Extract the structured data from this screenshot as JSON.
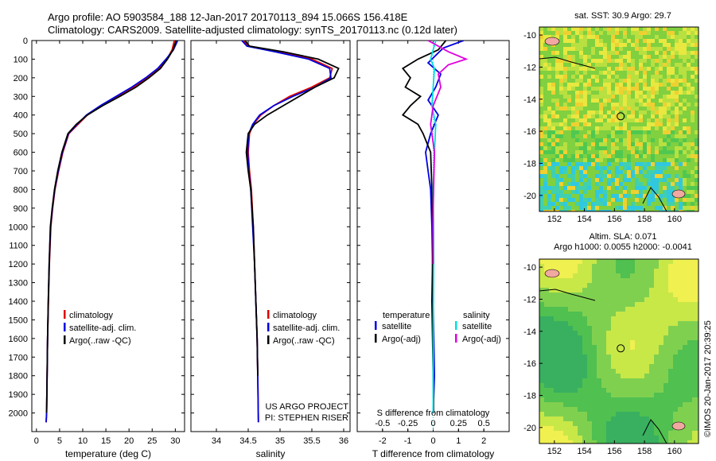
{
  "header": {
    "line1": "Argo profile: AO 5903584_188 12-Jan-2017 20170113_894 15.066S 156.418E",
    "line2": "Climatology: CARS2009. Satellite-adjusted climatology: synTS_20170113.nc (0.12d later)"
  },
  "credit": "©IMOS 20-Jan-2017 20:39:25",
  "chart_data": [
    {
      "id": "temperature",
      "type": "line",
      "xlabel": "temperature (deg C)",
      "xlim": [
        -1,
        32
      ],
      "ylim": [
        2100,
        0
      ],
      "xticks": [
        0,
        5,
        10,
        15,
        20,
        25,
        30
      ],
      "yticks": [
        0,
        100,
        200,
        300,
        400,
        500,
        600,
        700,
        800,
        900,
        1000,
        1100,
        1200,
        1300,
        1400,
        1500,
        1600,
        1700,
        1800,
        1900,
        2000
      ],
      "legend": [
        "climatology",
        "satellite-adj. clim.",
        "Argo(..raw -QC)"
      ],
      "legend_colors": [
        "#e00000",
        "#0000e0",
        "#000000"
      ],
      "series": [
        {
          "name": "climatology",
          "color": "#e00000",
          "x": [
            29.8,
            29.3,
            28.2,
            26.5,
            24.0,
            21.0,
            17.5,
            14.0,
            11.0,
            9.0,
            7.0,
            5.7,
            4.8,
            4.0,
            3.5,
            3.1,
            2.8,
            2.6,
            2.4,
            2.3,
            2.2,
            2.1
          ],
          "y": [
            0,
            50,
            100,
            150,
            200,
            250,
            300,
            350,
            400,
            450,
            500,
            600,
            700,
            800,
            900,
            1000,
            1200,
            1400,
            1600,
            1800,
            2000,
            2050
          ]
        },
        {
          "name": "satellite-adj. clim.",
          "color": "#0000e0",
          "x": [
            30.5,
            29.6,
            28.0,
            26.2,
            23.6,
            20.6,
            17.2,
            13.8,
            10.8,
            8.8,
            6.9,
            5.6,
            4.7,
            3.95,
            3.45,
            3.05,
            2.75,
            2.55,
            2.4,
            2.3,
            2.2,
            2.1
          ],
          "y": [
            0,
            50,
            100,
            150,
            200,
            250,
            300,
            350,
            400,
            450,
            500,
            600,
            700,
            800,
            900,
            1000,
            1200,
            1400,
            1600,
            1800,
            2000,
            2050
          ]
        },
        {
          "name": "Argo(..raw -QC)",
          "color": "#000000",
          "x": [
            30.2,
            29.5,
            28.3,
            26.8,
            24.3,
            21.5,
            18.0,
            14.3,
            11.0,
            8.6,
            6.8,
            5.5,
            4.6,
            3.9,
            3.4,
            3.0,
            2.75,
            2.55,
            2.4,
            2.3,
            2.2
          ],
          "y": [
            0,
            50,
            100,
            150,
            200,
            250,
            300,
            350,
            400,
            450,
            500,
            600,
            700,
            800,
            900,
            1000,
            1200,
            1400,
            1600,
            1800,
            2000
          ]
        }
      ]
    },
    {
      "id": "salinity",
      "type": "line",
      "xlabel": "salinity",
      "xlim": [
        33.6,
        36.1
      ],
      "ylim": [
        2100,
        0
      ],
      "xticks": [
        34,
        34.5,
        35,
        35.5,
        36
      ],
      "xtick_labels": [
        "34",
        "34.5",
        "35",
        "35.5",
        "36"
      ],
      "legend": [
        "climatology",
        "satellite-adj. clim.",
        "Argo(..raw -QC)"
      ],
      "legend_colors": [
        "#e00000",
        "#0000e0",
        "#000000"
      ],
      "annotation": [
        "US ARGO PROJECT",
        "PI: STEPHEN RISER"
      ],
      "series": [
        {
          "name": "climatology",
          "color": "#e00000",
          "x": [
            34.42,
            34.5,
            34.95,
            35.5,
            35.82,
            35.78,
            35.5,
            35.15,
            34.9,
            34.7,
            34.58,
            34.52,
            34.5,
            34.52,
            34.55,
            34.58,
            34.6,
            34.62,
            34.64,
            34.65,
            34.66
          ],
          "y": [
            0,
            30,
            60,
            100,
            150,
            200,
            250,
            300,
            350,
            400,
            450,
            500,
            600,
            700,
            800,
            1000,
            1200,
            1400,
            1600,
            1800,
            2050
          ]
        },
        {
          "name": "satellite-adj. clim.",
          "color": "#0000e0",
          "x": [
            34.4,
            34.48,
            34.92,
            35.45,
            35.78,
            35.8,
            35.55,
            35.2,
            34.9,
            34.68,
            34.57,
            34.51,
            34.49,
            34.51,
            34.54,
            34.57,
            34.6,
            34.62,
            34.64,
            34.65,
            34.66
          ],
          "y": [
            0,
            30,
            60,
            100,
            150,
            200,
            250,
            300,
            350,
            400,
            450,
            500,
            600,
            700,
            800,
            1000,
            1200,
            1400,
            1600,
            1800,
            2050
          ]
        },
        {
          "name": "Argo(..raw -QC)",
          "color": "#000000",
          "x": [
            34.45,
            34.52,
            35.05,
            35.6,
            35.92,
            35.85,
            35.55,
            35.3,
            35.05,
            34.8,
            34.6,
            34.5,
            34.47,
            34.5,
            34.54,
            34.58,
            34.6,
            34.62,
            34.64,
            34.65
          ],
          "y": [
            0,
            30,
            60,
            100,
            150,
            200,
            250,
            300,
            350,
            400,
            450,
            500,
            600,
            700,
            800,
            1000,
            1200,
            1400,
            1600,
            1800
          ]
        }
      ]
    },
    {
      "id": "difference",
      "type": "line",
      "xlabel": "T difference from climatology",
      "xlabel2": "S difference from climatology",
      "xlim": [
        -3,
        3
      ],
      "ylim": [
        2100,
        0
      ],
      "xticks": [
        -2,
        -1,
        0,
        1,
        2
      ],
      "xtick_labels": [
        "-2",
        "-1",
        "0",
        "1",
        "2"
      ],
      "xticks2": [
        -0.5,
        -0.25,
        0,
        0.25,
        0.5
      ],
      "xtick_labels2": [
        "-0.5",
        "-0.25",
        "0",
        "0.25",
        "0.5"
      ],
      "legend_title_left": "temperature",
      "legend_title_right": "salinity",
      "legend_left": [
        "satellite",
        "Argo(-adj)"
      ],
      "legend_left_colors": [
        "#0000e0",
        "#000000"
      ],
      "legend_right": [
        "satellite",
        "Argo(-adj)"
      ],
      "legend_right_colors": [
        "#00e0e0",
        "#e000e0"
      ],
      "series": [
        {
          "name": "satellite",
          "color": "#0000e0",
          "x": [
            1.2,
            0.4,
            0.1,
            -0.2,
            0.3,
            0.1,
            -0.2,
            0.2,
            -0.1,
            -0.3,
            -0.2,
            -0.1,
            -0.05,
            0,
            0.05,
            0
          ],
          "y": [
            0,
            40,
            80,
            120,
            180,
            250,
            320,
            400,
            500,
            600,
            700,
            800,
            1000,
            1400,
            1800,
            2000
          ]
        },
        {
          "name": "Argo(-adj)",
          "color": "#000000",
          "x": [
            0.5,
            0.2,
            -0.6,
            -1.2,
            -0.9,
            -1.1,
            -0.5,
            -0.9,
            -1.2,
            -0.6,
            -0.4,
            -0.1,
            -0.05,
            0,
            -0.05,
            0,
            0.02
          ],
          "y": [
            0,
            50,
            100,
            150,
            200,
            250,
            300,
            350,
            400,
            450,
            500,
            600,
            800,
            1000,
            1400,
            1800,
            2000
          ]
        },
        {
          "name": "satellite",
          "color": "#00e0e0",
          "x": [
            0.1,
            0,
            -0.1,
            0.05,
            0,
            -0.05,
            0.1,
            0.05,
            0,
            0.02,
            0,
            0
          ],
          "y": [
            0,
            50,
            100,
            150,
            250,
            350,
            450,
            600,
            800,
            1200,
            1600,
            2000
          ]
        },
        {
          "name": "Argo(-adj)",
          "color": "#e000e0",
          "x": [
            -0.2,
            0.6,
            1.3,
            0.6,
            0.2,
            0.3,
            0.0,
            -0.1,
            0.05,
            0,
            0
          ],
          "y": [
            0,
            60,
            100,
            130,
            180,
            250,
            350,
            450,
            600,
            900,
            1200
          ]
        }
      ]
    },
    {
      "id": "sst-map",
      "type": "heatmap",
      "title": "sat. SST: 30.9  Argo: 29.7",
      "xlim": [
        151,
        161.6
      ],
      "ylim": [
        -21,
        -9.5
      ],
      "xticks": [
        152,
        154,
        156,
        158,
        160
      ],
      "yticks": [
        -10,
        -12,
        -14,
        -16,
        -18,
        -20
      ],
      "argo_position": [
        156.418,
        -15.066
      ]
    },
    {
      "id": "sla-map",
      "type": "heatmap",
      "title": "Altim. SLA: 0.071",
      "subtitle": "Argo h1000: 0.0055 h2000: -0.0041",
      "xlim": [
        151,
        161.6
      ],
      "ylim": [
        -21,
        -9.5
      ],
      "xticks": [
        152,
        154,
        156,
        158,
        160
      ],
      "yticks": [
        -10,
        -12,
        -14,
        -16,
        -18,
        -20
      ],
      "argo_position": [
        156.418,
        -15.066
      ]
    }
  ]
}
